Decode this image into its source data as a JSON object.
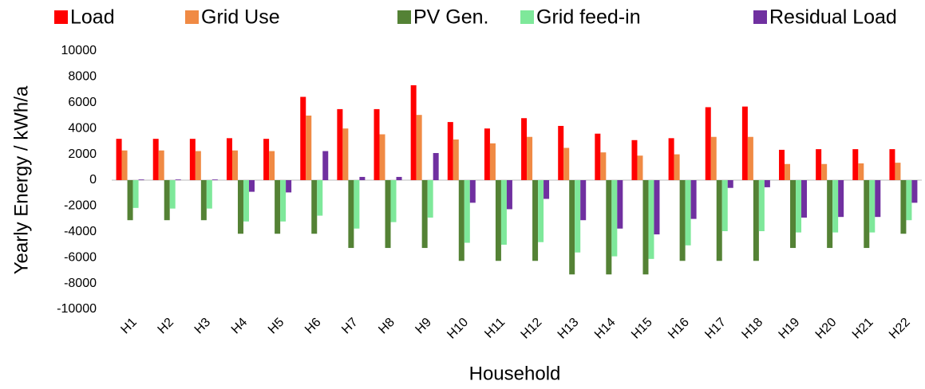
{
  "chart_data": {
    "type": "bar",
    "x_label": "Household",
    "y_label": "Yearly Energy / kWh/a",
    "categories": [
      "H1",
      "H2",
      "H3",
      "H4",
      "H5",
      "H6",
      "H7",
      "H8",
      "H9",
      "H10",
      "H11",
      "H12",
      "H13",
      "H14",
      "H15",
      "H16",
      "H17",
      "H18",
      "H19",
      "H20",
      "H21",
      "H22"
    ],
    "series": [
      {
        "name": "Load",
        "color": "#ff0000",
        "values": [
          3200,
          3200,
          3200,
          3250,
          3200,
          6450,
          5500,
          5500,
          7350,
          4500,
          4000,
          4800,
          4200,
          3600,
          3100,
          3250,
          5650,
          5700,
          2350,
          2400,
          2400,
          2400
        ]
      },
      {
        "name": "Grid Use",
        "color": "#f08a44",
        "values": [
          2300,
          2300,
          2250,
          2300,
          2250,
          5000,
          4000,
          3550,
          5050,
          3150,
          2850,
          3350,
          2500,
          2150,
          1900,
          2000,
          3350,
          3350,
          1250,
          1250,
          1300,
          1350
        ]
      },
      {
        "name": "PV Gen.",
        "color": "#548235",
        "values": [
          -3100,
          -3100,
          -3100,
          -4150,
          -4150,
          -4150,
          -5250,
          -5250,
          -5250,
          -6250,
          -6250,
          -6250,
          -7300,
          -7300,
          -7300,
          -6250,
          -6250,
          -6250,
          -5250,
          -5250,
          -5250,
          -4150
        ]
      },
      {
        "name": "Grid feed-in",
        "color": "#7ee89a",
        "values": [
          -2150,
          -2200,
          -2200,
          -3200,
          -3200,
          -2750,
          -3750,
          -3250,
          -2900,
          -4850,
          -5000,
          -4800,
          -5600,
          -5900,
          -6100,
          -5050,
          -3950,
          -3950,
          -4050,
          -4050,
          -4050,
          -3100
        ]
      },
      {
        "name": "Residual Load",
        "color": "#7030a0",
        "values": [
          50,
          50,
          50,
          -900,
          -950,
          2250,
          250,
          250,
          2100,
          -1750,
          -2250,
          -1450,
          -3100,
          -3750,
          -4200,
          -3000,
          -600,
          -550,
          -2900,
          -2850,
          -2850,
          -1750
        ]
      }
    ],
    "ylim": [
      -10000,
      10000
    ],
    "yticks": [
      -10000,
      -8000,
      -6000,
      -4000,
      -2000,
      0,
      2000,
      4000,
      6000,
      8000,
      10000
    ],
    "grid": false,
    "legend": "top"
  }
}
